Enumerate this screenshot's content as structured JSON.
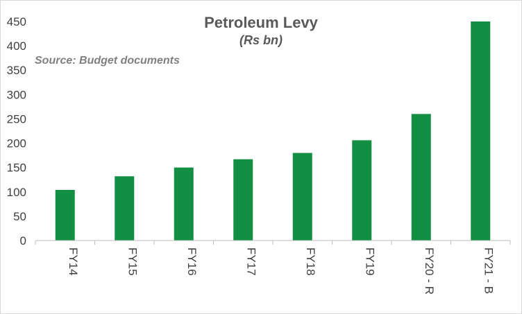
{
  "chart_data": {
    "type": "bar",
    "title": "Petroleum Levy",
    "subtitle": "(Rs bn)",
    "source": "Source: Budget documents",
    "xlabel": "",
    "ylabel": "",
    "categories": [
      "FY14",
      "FY15",
      "FY16",
      "FY17",
      "FY18",
      "FY19",
      "FY20 - R",
      "FY21 - B"
    ],
    "values": [
      104,
      132,
      150,
      167,
      180,
      206,
      260,
      450
    ],
    "ylim": [
      0,
      450
    ],
    "yticks": [
      "0",
      "50",
      "100",
      "150",
      "200",
      "250",
      "300",
      "350",
      "400",
      "450"
    ],
    "grid": false,
    "legend": "none",
    "bar_color": "#138f44",
    "axis_color": "#bfbfbf"
  }
}
